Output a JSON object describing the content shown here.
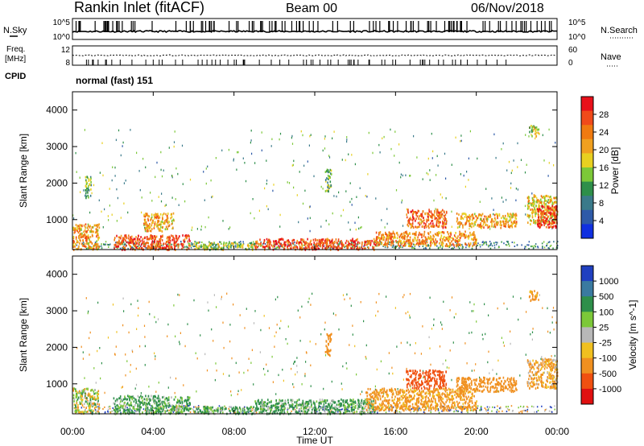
{
  "header": {
    "station": "Rankin Inlet (fitACF)",
    "beam": "Beam 00",
    "date": "06/Nov/2018"
  },
  "summary": {
    "nsky": {
      "label": "N.Sky",
      "ticks": [
        "10^5",
        "10^0"
      ]
    },
    "nsearch": {
      "label": "N.Search",
      "ticks": [
        "10^5",
        "10^0"
      ]
    },
    "freq": {
      "label_line1": "Freq.",
      "label_line2": "[MHz]",
      "ticks": [
        "12",
        "8"
      ]
    },
    "nave": {
      "label": "Nave",
      "ticks": [
        "60",
        "0"
      ]
    },
    "cpid": {
      "label": "CPID",
      "value": "normal (fast) 151"
    }
  },
  "axes": {
    "y_label": "Slant Range [km]",
    "y_ticks": [
      "4000",
      "3000",
      "2000",
      "1000"
    ],
    "x_label": "Time UT",
    "x_ticks": [
      "00:00",
      "04:00",
      "08:00",
      "12:00",
      "16:00",
      "20:00",
      "00:00"
    ]
  },
  "colorbars": {
    "power": {
      "label": "Power [dB]",
      "ticks": [
        "28",
        "24",
        "20",
        "16",
        "12",
        "8",
        "4"
      ],
      "colors": [
        "#e8101a",
        "#f04a1a",
        "#f07a10",
        "#f0a020",
        "#e8d020",
        "#7cc838",
        "#2e8f4a",
        "#3a7a8a",
        "#2e5aa8",
        "#1030e0"
      ]
    },
    "velocity": {
      "label": "Velocity [m s^-1]",
      "ticks": [
        "1000",
        "500",
        "100",
        "25",
        "-25",
        "-100",
        "-500",
        "-1000"
      ],
      "colors": [
        "#2040c0",
        "#3a7aa0",
        "#2e8f4a",
        "#7cc838",
        "#b8b8b8",
        "#f0c020",
        "#f09020",
        "#f05010",
        "#e01010"
      ]
    }
  },
  "chart_data": [
    {
      "type": "heatmap",
      "title": "Power [dB]",
      "xlabel": "Time UT",
      "ylabel": "Slant Range [km]",
      "x_range": [
        "00:00",
        "24:00"
      ],
      "ylim": [
        180,
        4500
      ],
      "regions": [
        {
          "t": [
            0.0,
            1.3
          ],
          "r": [
            200,
            900
          ],
          "level": 20
        },
        {
          "t": [
            0.6,
            0.9
          ],
          "r": [
            1600,
            2200
          ],
          "level": 12
        },
        {
          "t": [
            2.0,
            5.8
          ],
          "r": [
            200,
            600
          ],
          "level": 26
        },
        {
          "t": [
            3.5,
            5.0
          ],
          "r": [
            700,
            1200
          ],
          "level": 20
        },
        {
          "t": [
            6.0,
            9.0
          ],
          "r": [
            200,
            400
          ],
          "level": 14
        },
        {
          "t": [
            9.0,
            15.0
          ],
          "r": [
            200,
            500
          ],
          "level": 26
        },
        {
          "t": [
            12.5,
            12.8
          ],
          "r": [
            1800,
            2400
          ],
          "level": 12
        },
        {
          "t": [
            15.0,
            20.0
          ],
          "r": [
            300,
            700
          ],
          "level": 22
        },
        {
          "t": [
            16.5,
            18.5
          ],
          "r": [
            800,
            1300
          ],
          "level": 24
        },
        {
          "t": [
            19.0,
            22.0
          ],
          "r": [
            800,
            1200
          ],
          "level": 20
        },
        {
          "t": [
            22.5,
            24.0
          ],
          "r": [
            900,
            1700
          ],
          "level": 18
        },
        {
          "t": [
            23.0,
            24.0
          ],
          "r": [
            800,
            1400
          ],
          "level": 28
        },
        {
          "t": [
            22.6,
            23.1
          ],
          "r": [
            3300,
            3600
          ],
          "level": 16
        }
      ]
    },
    {
      "type": "heatmap",
      "title": "Velocity [m s^-1]",
      "xlabel": "Time UT",
      "ylabel": "Slant Range [km]",
      "x_range": [
        "00:00",
        "24:00"
      ],
      "ylim": [
        180,
        4500
      ],
      "regions": [
        {
          "t": [
            0.0,
            1.3
          ],
          "r": [
            200,
            900
          ],
          "level": 0
        },
        {
          "t": [
            2.0,
            5.8
          ],
          "r": [
            200,
            700
          ],
          "level": 150
        },
        {
          "t": [
            6.0,
            9.0
          ],
          "r": [
            200,
            400
          ],
          "level": 150
        },
        {
          "t": [
            9.0,
            15.0
          ],
          "r": [
            200,
            600
          ],
          "level": 150
        },
        {
          "t": [
            12.5,
            12.8
          ],
          "r": [
            1800,
            2400
          ],
          "level": -300
        },
        {
          "t": [
            14.5,
            20.0
          ],
          "r": [
            300,
            900
          ],
          "level": -200
        },
        {
          "t": [
            16.5,
            18.5
          ],
          "r": [
            900,
            1400
          ],
          "level": -700
        },
        {
          "t": [
            19.0,
            22.0
          ],
          "r": [
            800,
            1200
          ],
          "level": -300
        },
        {
          "t": [
            22.5,
            24.0
          ],
          "r": [
            900,
            1700
          ],
          "level": -150
        },
        {
          "t": [
            22.6,
            23.1
          ],
          "r": [
            3300,
            3600
          ],
          "level": -200
        }
      ]
    }
  ]
}
